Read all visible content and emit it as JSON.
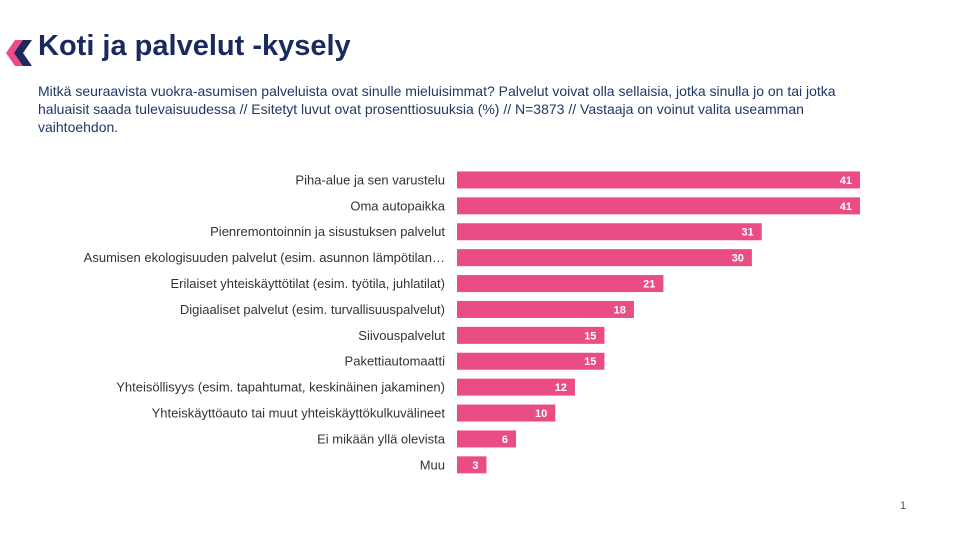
{
  "chart_data": {
    "type": "bar",
    "orientation": "horizontal",
    "title": "Koti ja palvelut -kysely",
    "subtitle": "Mitkä seuraavista vuokra-asumisen palveluista ovat sinulle mieluisimmat? Palvelut voivat olla sellaisia, jotka sinulla jo on tai jotka haluaisit saada tulevaisuudessa // Esitetyt luvut ovat prosenttiosuuksia (%) // N=3873 // Vastaaja on voinut valita useamman vaihtoehdon.",
    "categories": [
      "Piha-alue ja sen varustelu",
      "Oma autopaikka",
      "Pienremontoinnin ja sisustuksen palvelut",
      "Asumisen ekologisuuden palvelut (esim. asunnon lämpötilan…",
      "Erilaiset yhteiskäyttötilat (esim. työtila, juhlatilat)",
      "Digiaaliset palvelut (esim. turvallisuuspalvelut)",
      "Siivouspalvelut",
      "Pakettiautomaatti",
      "Yhteisöllisyys (esim. tapahtumat, keskinäinen jakaminen)",
      "Yhteiskäyttöauto tai muut yhteiskäyttökulkuvälineet",
      "Ei mikään yllä olevista",
      "Muu"
    ],
    "values": [
      41,
      41,
      31,
      30,
      21,
      18,
      15,
      15,
      12,
      10,
      6,
      3
    ],
    "color": "#ea4c86",
    "page_number": "1"
  }
}
